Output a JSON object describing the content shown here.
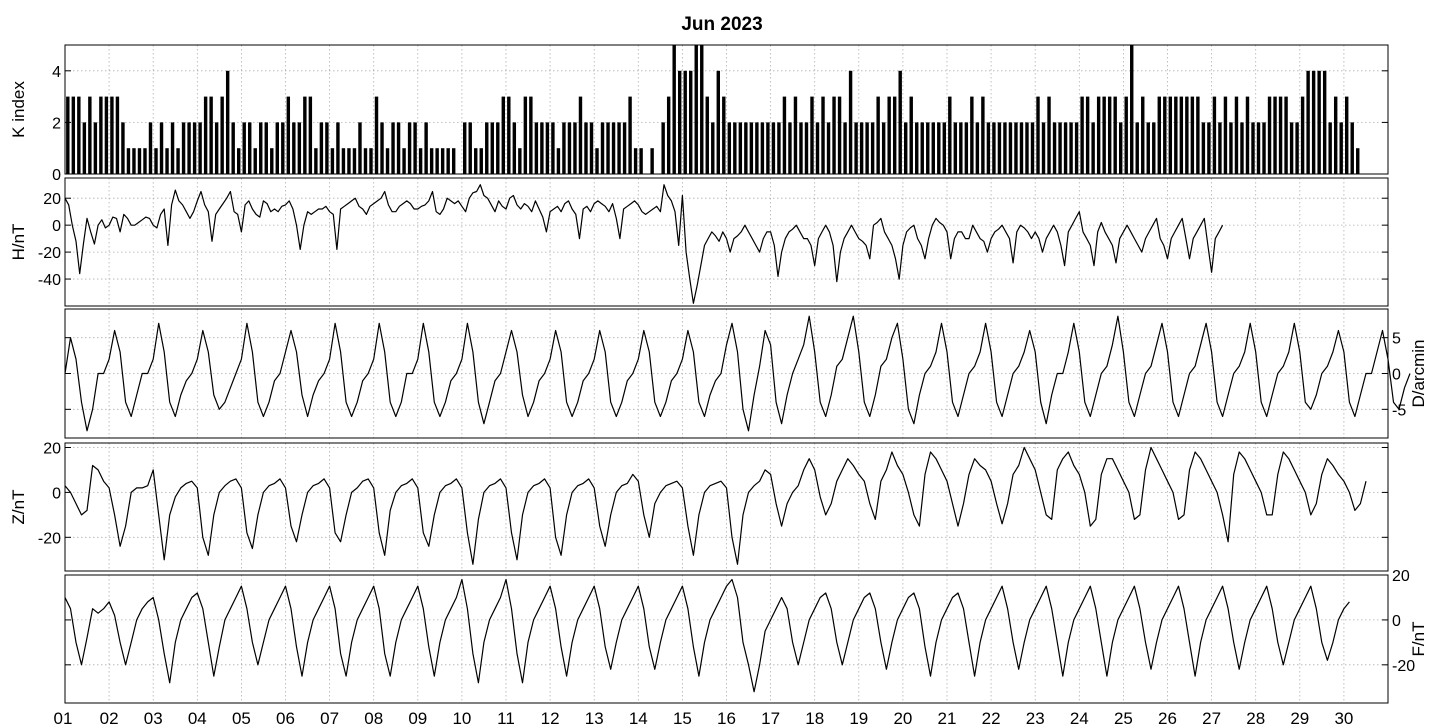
{
  "chart_data": {
    "title": "Jun 2023",
    "type": "multi-panel",
    "x_tick_labels": [
      "01",
      "02",
      "03",
      "04",
      "05",
      "06",
      "07",
      "08",
      "09",
      "10",
      "11",
      "12",
      "13",
      "14",
      "15",
      "16",
      "17",
      "18",
      "19",
      "20",
      "21",
      "22",
      "23",
      "24",
      "25",
      "26",
      "27",
      "28",
      "29",
      "30"
    ],
    "days": 30,
    "grid": true,
    "panels": [
      {
        "id": "k",
        "type": "bar",
        "ylabel": "K index",
        "ylabel_side": "left",
        "ylim": [
          0,
          5
        ],
        "ticks": [
          0,
          2,
          4
        ],
        "tick_labels": [
          "0",
          "2",
          "4"
        ],
        "interval_hours": 3,
        "values": [
          3,
          3,
          3,
          2,
          3,
          2,
          3,
          3,
          3,
          3,
          2,
          1,
          1,
          1,
          1,
          2,
          1,
          2,
          1,
          2,
          1,
          2,
          2,
          2,
          2,
          3,
          3,
          2,
          3,
          4,
          2,
          1,
          2,
          2,
          1,
          2,
          2,
          1,
          2,
          2,
          3,
          2,
          2,
          3,
          3,
          1,
          2,
          2,
          1,
          2,
          1,
          1,
          1,
          2,
          1,
          1,
          3,
          2,
          1,
          2,
          2,
          1,
          2,
          2,
          1,
          2,
          1,
          1,
          1,
          1,
          1,
          0,
          2,
          2,
          1,
          1,
          2,
          2,
          2,
          3,
          3,
          2,
          1,
          3,
          3,
          2,
          2,
          2,
          2,
          1,
          2,
          2,
          2,
          3,
          2,
          2,
          1,
          2,
          2,
          2,
          2,
          2,
          3,
          1,
          1,
          0,
          1,
          0,
          2,
          3,
          5,
          4,
          4,
          4,
          5,
          5,
          3,
          2,
          4,
          3,
          2,
          2,
          2,
          2,
          2,
          2,
          2,
          2,
          2,
          2,
          3,
          2,
          3,
          2,
          2,
          3,
          2,
          3,
          2,
          3,
          3,
          2,
          4,
          2,
          2,
          2,
          2,
          3,
          2,
          3,
          3,
          4,
          2,
          3,
          2,
          2,
          2,
          2,
          2,
          2,
          3,
          2,
          2,
          2,
          3,
          2,
          3,
          2,
          2,
          2,
          2,
          2,
          2,
          2,
          2,
          2,
          3,
          2,
          3,
          2,
          2,
          2,
          2,
          2,
          3,
          3,
          2,
          3,
          3,
          3,
          3,
          2,
          3,
          5,
          2,
          3,
          2,
          2,
          3,
          3,
          3,
          3,
          3,
          3,
          3,
          3,
          2,
          2,
          3,
          2,
          3,
          2,
          3,
          2,
          3,
          2,
          2,
          2,
          3,
          3,
          3,
          3,
          2,
          2,
          3,
          4,
          4,
          4,
          4,
          2,
          3,
          2,
          3,
          2,
          1
        ]
      },
      {
        "id": "h",
        "type": "line",
        "ylabel": "H/nT",
        "ylabel_side": "left",
        "ylim": [
          -60,
          35
        ],
        "ticks": [
          -40,
          -20,
          0,
          20
        ],
        "tick_labels": [
          "-40",
          "-20",
          "0",
          "20"
        ],
        "interval_hours": 2,
        "values": [
          20,
          15,
          0,
          -12,
          -36,
          -14,
          5,
          -5,
          -14,
          0,
          4,
          -2,
          0,
          6,
          5,
          -5,
          8,
          5,
          0,
          0,
          2,
          4,
          6,
          5,
          0,
          -2,
          8,
          12,
          -15,
          15,
          26,
          18,
          15,
          10,
          5,
          10,
          18,
          25,
          15,
          10,
          -12,
          8,
          12,
          16,
          20,
          25,
          10,
          8,
          -5,
          15,
          18,
          12,
          8,
          6,
          18,
          16,
          10,
          12,
          10,
          14,
          15,
          18,
          12,
          0,
          -18,
          0,
          10,
          8,
          10,
          12,
          12,
          14,
          10,
          8,
          -18,
          12,
          14,
          16,
          18,
          20,
          14,
          12,
          8,
          14,
          16,
          18,
          20,
          25,
          15,
          10,
          10,
          14,
          16,
          18,
          16,
          12,
          12,
          14,
          15,
          18,
          25,
          10,
          8,
          12,
          20,
          18,
          16,
          18,
          14,
          10,
          20,
          24,
          25,
          30,
          22,
          20,
          15,
          10,
          18,
          14,
          12,
          20,
          22,
          15,
          12,
          16,
          14,
          10,
          18,
          12,
          6,
          -5,
          10,
          12,
          14,
          10,
          16,
          18,
          12,
          8,
          -10,
          12,
          14,
          10,
          16,
          18,
          16,
          14,
          10,
          16,
          5,
          -10,
          12,
          14,
          16,
          18,
          15,
          10,
          8,
          10,
          12,
          14,
          10,
          30,
          22,
          18,
          10,
          -15,
          22,
          -20,
          -40,
          -58,
          -45,
          -30,
          -15,
          -10,
          -5,
          -8,
          -12,
          -5,
          -10,
          -20,
          -10,
          -8,
          -5,
          0,
          -5,
          -10,
          -15,
          -20,
          -10,
          -5,
          -5,
          -15,
          -38,
          -20,
          -10,
          -5,
          -3,
          0,
          -5,
          -10,
          -10,
          -15,
          -30,
          -10,
          -5,
          0,
          -5,
          -15,
          -42,
          -20,
          -10,
          -5,
          0,
          -5,
          -10,
          -12,
          -15,
          -25,
          0,
          2,
          5,
          -5,
          -10,
          -15,
          -25,
          -40,
          -15,
          -5,
          -2,
          0,
          -10,
          -15,
          -25,
          -10,
          0,
          5,
          2,
          0,
          -5,
          -25,
          -10,
          -5,
          -5,
          -10,
          -10,
          0,
          -5,
          -10,
          -12,
          -20,
          -10,
          -5,
          -3,
          0,
          -5,
          -10,
          -28,
          -5,
          0,
          -2,
          -5,
          -10,
          -5,
          -10,
          -20,
          -10,
          -5,
          0,
          -5,
          -15,
          -30,
          -5,
          0,
          5,
          10,
          -5,
          -10,
          -15,
          -30,
          -5,
          2,
          -5,
          -10,
          -15,
          -28,
          -10,
          -5,
          0,
          -5,
          -10,
          -15,
          -20,
          -10,
          -5,
          0,
          5,
          -10,
          -15,
          -25,
          -10,
          -5,
          0,
          5,
          -10,
          -25,
          -10,
          -5,
          0,
          5,
          -15,
          -35,
          -10,
          -5,
          0
        ]
      },
      {
        "id": "d",
        "type": "line",
        "ylabel": "D/arcmin",
        "ylabel_side": "right",
        "ylim": [
          -9,
          9
        ],
        "ticks": [
          -5,
          0,
          5
        ],
        "tick_labels": [
          "-5",
          "0",
          "5"
        ],
        "interval_hours": 3,
        "values": [
          0,
          5,
          2,
          -4,
          -8,
          -5,
          0,
          0,
          2,
          6,
          3,
          -4,
          -6,
          -3,
          0,
          0,
          2,
          7,
          3,
          -4,
          -6,
          -3,
          -1,
          0,
          2,
          6,
          3,
          -3,
          -5,
          -4,
          -2,
          0,
          2,
          7,
          3,
          -4,
          -6,
          -4,
          -1,
          0,
          3,
          6,
          3,
          -3,
          -6,
          -3,
          -1,
          0,
          2,
          7,
          3,
          -4,
          -6,
          -4,
          -1,
          0,
          2,
          7,
          3,
          -4,
          -6,
          -4,
          0,
          0,
          2,
          7,
          3,
          -4,
          -6,
          -4,
          -1,
          0,
          2,
          7,
          3,
          -4,
          -7,
          -4,
          -1,
          0,
          3,
          6,
          3,
          -3,
          -6,
          -4,
          -1,
          0,
          2,
          6,
          3,
          -4,
          -6,
          -4,
          -1,
          0,
          2,
          6,
          3,
          -4,
          -6,
          -4,
          -1,
          0,
          2,
          6,
          3,
          -4,
          -6,
          -4,
          -1,
          0,
          2,
          6,
          3,
          -4,
          -6,
          -3,
          -1,
          0,
          4,
          7,
          3,
          -5,
          -8,
          -3,
          1,
          6,
          4,
          -4,
          -7,
          -3,
          0,
          2,
          4,
          8,
          3,
          -4,
          -6,
          -3,
          1,
          2,
          5,
          8,
          3,
          -4,
          -6,
          -3,
          1,
          2,
          5,
          7,
          2,
          -5,
          -7,
          -3,
          0,
          1,
          3,
          7,
          3,
          -4,
          -6,
          -3,
          0,
          1,
          3,
          7,
          3,
          -4,
          -6,
          -3,
          0,
          1,
          3,
          6,
          3,
          -4,
          -7,
          -3,
          0,
          0,
          3,
          7,
          3,
          -4,
          -6,
          -3,
          0,
          1,
          4,
          8,
          3,
          -4,
          -6,
          -3,
          0,
          1,
          4,
          7,
          3,
          -4,
          -6,
          -3,
          0,
          1,
          4,
          7,
          3,
          -4,
          -6,
          -3,
          0,
          1,
          3,
          7,
          3,
          -4,
          -6,
          -3,
          0,
          1,
          3,
          7,
          3,
          -4,
          -5,
          -3,
          0,
          1,
          3,
          6,
          3,
          -4,
          -6,
          -3,
          0,
          0,
          3,
          6,
          2,
          -4,
          -5,
          -2,
          0
        ]
      },
      {
        "id": "z",
        "type": "line",
        "ylabel": "Z/nT",
        "ylabel_side": "left",
        "ylim": [
          -35,
          22
        ],
        "ticks": [
          -20,
          0,
          20
        ],
        "tick_labels": [
          "-20",
          "0",
          "20"
        ],
        "interval_hours": 3,
        "values": [
          3,
          0,
          -5,
          -10,
          -8,
          12,
          10,
          5,
          2,
          -10,
          -24,
          -15,
          0,
          2,
          2,
          3,
          10,
          -10,
          -30,
          -10,
          -2,
          2,
          4,
          5,
          2,
          -20,
          -28,
          -10,
          0,
          3,
          5,
          6,
          2,
          -18,
          -25,
          -10,
          0,
          3,
          4,
          6,
          2,
          -15,
          -22,
          -10,
          0,
          3,
          4,
          6,
          2,
          -18,
          -22,
          -10,
          0,
          2,
          5,
          6,
          2,
          -18,
          -28,
          -8,
          0,
          3,
          4,
          6,
          2,
          -18,
          -24,
          -10,
          0,
          3,
          4,
          6,
          2,
          -18,
          -32,
          -12,
          0,
          3,
          4,
          6,
          2,
          -18,
          -30,
          -10,
          0,
          3,
          4,
          6,
          2,
          -20,
          -28,
          -10,
          0,
          3,
          4,
          6,
          2,
          -15,
          -24,
          -10,
          0,
          3,
          4,
          8,
          5,
          -10,
          -20,
          -5,
          0,
          3,
          4,
          5,
          2,
          -15,
          -28,
          -10,
          0,
          3,
          4,
          5,
          2,
          -20,
          -32,
          -10,
          0,
          3,
          5,
          10,
          8,
          -5,
          -15,
          -5,
          0,
          3,
          10,
          15,
          10,
          -2,
          -10,
          -5,
          5,
          10,
          15,
          12,
          8,
          5,
          -5,
          -12,
          5,
          10,
          18,
          12,
          8,
          0,
          -10,
          -15,
          8,
          18,
          15,
          10,
          5,
          -5,
          -15,
          -5,
          8,
          15,
          12,
          10,
          5,
          -5,
          -14,
          -5,
          8,
          12,
          20,
          15,
          10,
          0,
          -10,
          -12,
          10,
          15,
          18,
          12,
          8,
          0,
          -15,
          -12,
          8,
          15,
          15,
          10,
          5,
          0,
          -12,
          -10,
          10,
          20,
          15,
          10,
          5,
          0,
          -12,
          -10,
          10,
          18,
          15,
          10,
          5,
          0,
          -10,
          -22,
          8,
          18,
          15,
          10,
          5,
          0,
          -10,
          -10,
          8,
          18,
          15,
          10,
          5,
          0,
          -10,
          -5,
          8,
          15,
          12,
          8,
          5,
          0,
          -8,
          -5,
          5
        ]
      },
      {
        "id": "f",
        "type": "line",
        "ylabel": "F/nT",
        "ylabel_side": "right",
        "ylim": [
          -37,
          20
        ],
        "ticks": [
          -20,
          0,
          20
        ],
        "tick_labels": [
          "-20",
          "0",
          "20"
        ],
        "interval_hours": 3,
        "values": [
          10,
          5,
          -10,
          -20,
          -8,
          5,
          3,
          5,
          8,
          2,
          -10,
          -20,
          -10,
          0,
          5,
          8,
          10,
          0,
          -15,
          -28,
          -10,
          0,
          5,
          10,
          12,
          5,
          -10,
          -25,
          -12,
          0,
          5,
          10,
          15,
          5,
          -10,
          -20,
          -10,
          0,
          5,
          10,
          15,
          5,
          -12,
          -25,
          -10,
          0,
          5,
          10,
          15,
          5,
          -15,
          -25,
          -10,
          0,
          5,
          10,
          15,
          5,
          -15,
          -25,
          -10,
          0,
          5,
          10,
          15,
          5,
          -12,
          -25,
          -10,
          0,
          5,
          10,
          18,
          5,
          -15,
          -28,
          -10,
          0,
          5,
          10,
          18,
          5,
          -15,
          -28,
          -10,
          0,
          5,
          10,
          15,
          5,
          -12,
          -25,
          -10,
          0,
          5,
          10,
          15,
          5,
          -12,
          -22,
          -10,
          0,
          5,
          10,
          15,
          5,
          -12,
          -22,
          -10,
          0,
          5,
          10,
          15,
          5,
          -12,
          -25,
          -10,
          0,
          5,
          10,
          15,
          18,
          10,
          -10,
          -20,
          -32,
          -20,
          -5,
          0,
          5,
          10,
          5,
          -10,
          -20,
          -10,
          0,
          5,
          10,
          12,
          5,
          -10,
          -20,
          -10,
          0,
          5,
          10,
          12,
          5,
          -10,
          -22,
          -10,
          0,
          5,
          10,
          12,
          5,
          -12,
          -25,
          -10,
          0,
          5,
          10,
          12,
          5,
          -10,
          -25,
          -10,
          0,
          5,
          10,
          15,
          5,
          -10,
          -22,
          -10,
          0,
          5,
          10,
          15,
          5,
          -10,
          -25,
          -10,
          0,
          5,
          10,
          15,
          5,
          -10,
          -25,
          -10,
          0,
          5,
          10,
          15,
          5,
          -10,
          -22,
          -10,
          0,
          5,
          10,
          15,
          5,
          -10,
          -25,
          -10,
          0,
          5,
          10,
          15,
          5,
          -10,
          -22,
          -10,
          0,
          5,
          10,
          15,
          5,
          -10,
          -20,
          -10,
          0,
          5,
          10,
          15,
          5,
          -10,
          -18,
          -10,
          0,
          5,
          8
        ]
      }
    ]
  }
}
